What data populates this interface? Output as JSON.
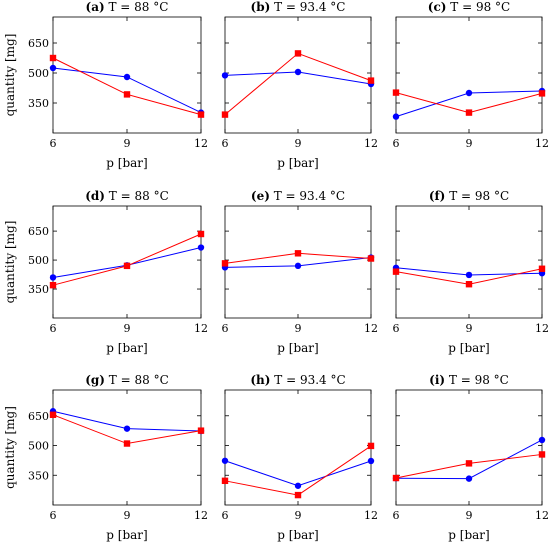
{
  "chart_data": [
    {
      "type": "line",
      "panel_label": "(a)",
      "title": "T = 88 °C",
      "xlabel": "p [bar]",
      "ylabel": "quantity [mg]",
      "x": [
        6,
        9,
        12
      ],
      "ylim": [
        200,
        780
      ],
      "y_ticks": [
        350,
        500,
        650
      ],
      "series": [
        {
          "color": "#0000ff",
          "marker": "circle",
          "values": [
            525,
            480,
            302
          ]
        },
        {
          "color": "#ff0000",
          "marker": "square",
          "values": [
            575,
            393,
            292
          ]
        }
      ]
    },
    {
      "type": "line",
      "panel_label": "(b)",
      "title": "T = 93.4 °C",
      "xlabel": "p [bar]",
      "ylabel": "",
      "x": [
        6,
        9,
        12
      ],
      "ylim": [
        200,
        780
      ],
      "y_ticks": [],
      "series": [
        {
          "color": "#0000ff",
          "marker": "circle",
          "values": [
            488,
            505,
            445
          ]
        },
        {
          "color": "#ff0000",
          "marker": "square",
          "values": [
            292,
            598,
            462
          ]
        }
      ]
    },
    {
      "type": "line",
      "panel_label": "(c)",
      "title": "T = 98 °C",
      "xlabel": "",
      "ylabel": "",
      "x": [
        6,
        9,
        12
      ],
      "ylim": [
        200,
        780
      ],
      "y_ticks": [],
      "series": [
        {
          "color": "#0000ff",
          "marker": "circle",
          "values": [
            282,
            400,
            410
          ]
        },
        {
          "color": "#ff0000",
          "marker": "square",
          "values": [
            402,
            302,
            398
          ]
        }
      ]
    },
    {
      "type": "line",
      "panel_label": "(d)",
      "title": "T = 88 °C",
      "xlabel": "p [bar]",
      "ylabel": "quantity [mg]",
      "x": [
        6,
        9,
        12
      ],
      "ylim": [
        200,
        780
      ],
      "y_ticks": [
        350,
        500,
        650
      ],
      "series": [
        {
          "color": "#0000ff",
          "marker": "circle",
          "values": [
            410,
            473,
            565
          ]
        },
        {
          "color": "#ff0000",
          "marker": "square",
          "values": [
            370,
            470,
            635
          ]
        }
      ]
    },
    {
      "type": "line",
      "panel_label": "(e)",
      "title": "T = 93.4 °C",
      "xlabel": "p [bar]",
      "ylabel": "",
      "x": [
        6,
        9,
        12
      ],
      "ylim": [
        200,
        780
      ],
      "y_ticks": [],
      "series": [
        {
          "color": "#0000ff",
          "marker": "circle",
          "values": [
            462,
            470,
            513
          ]
        },
        {
          "color": "#ff0000",
          "marker": "square",
          "values": [
            483,
            535,
            508
          ]
        }
      ]
    },
    {
      "type": "line",
      "panel_label": "(f)",
      "title": "T = 98 °C",
      "xlabel": "p [bar]",
      "ylabel": "",
      "x": [
        6,
        9,
        12
      ],
      "ylim": [
        200,
        780
      ],
      "y_ticks": [],
      "series": [
        {
          "color": "#0000ff",
          "marker": "circle",
          "values": [
            460,
            423,
            432
          ]
        },
        {
          "color": "#ff0000",
          "marker": "square",
          "values": [
            440,
            375,
            455
          ]
        }
      ]
    },
    {
      "type": "line",
      "panel_label": "(g)",
      "title": "T = 88 °C",
      "xlabel": "p [bar]",
      "ylabel": "quantity [mg]",
      "x": [
        6,
        9,
        12
      ],
      "ylim": [
        200,
        780
      ],
      "y_ticks": [
        350,
        500,
        650
      ],
      "series": [
        {
          "color": "#0000ff",
          "marker": "circle",
          "values": [
            673,
            585,
            573
          ]
        },
        {
          "color": "#ff0000",
          "marker": "square",
          "values": [
            655,
            510,
            575
          ]
        }
      ]
    },
    {
      "type": "line",
      "panel_label": "(h)",
      "title": "T = 93.4 °C",
      "xlabel": "p [bar]",
      "ylabel": "",
      "x": [
        6,
        9,
        12
      ],
      "ylim": [
        200,
        780
      ],
      "y_ticks": [],
      "series": [
        {
          "color": "#0000ff",
          "marker": "circle",
          "values": [
            423,
            297,
            422
          ]
        },
        {
          "color": "#ff0000",
          "marker": "square",
          "values": [
            322,
            250,
            498
          ]
        }
      ]
    },
    {
      "type": "line",
      "panel_label": "(i)",
      "title": "T = 98 °C",
      "xlabel": "p [bar]",
      "ylabel": "",
      "x": [
        6,
        9,
        12
      ],
      "ylim": [
        200,
        780
      ],
      "y_ticks": [],
      "series": [
        {
          "color": "#0000ff",
          "marker": "circle",
          "values": [
            335,
            333,
            528
          ]
        },
        {
          "color": "#ff0000",
          "marker": "square",
          "values": [
            336,
            410,
            455
          ]
        }
      ]
    }
  ]
}
